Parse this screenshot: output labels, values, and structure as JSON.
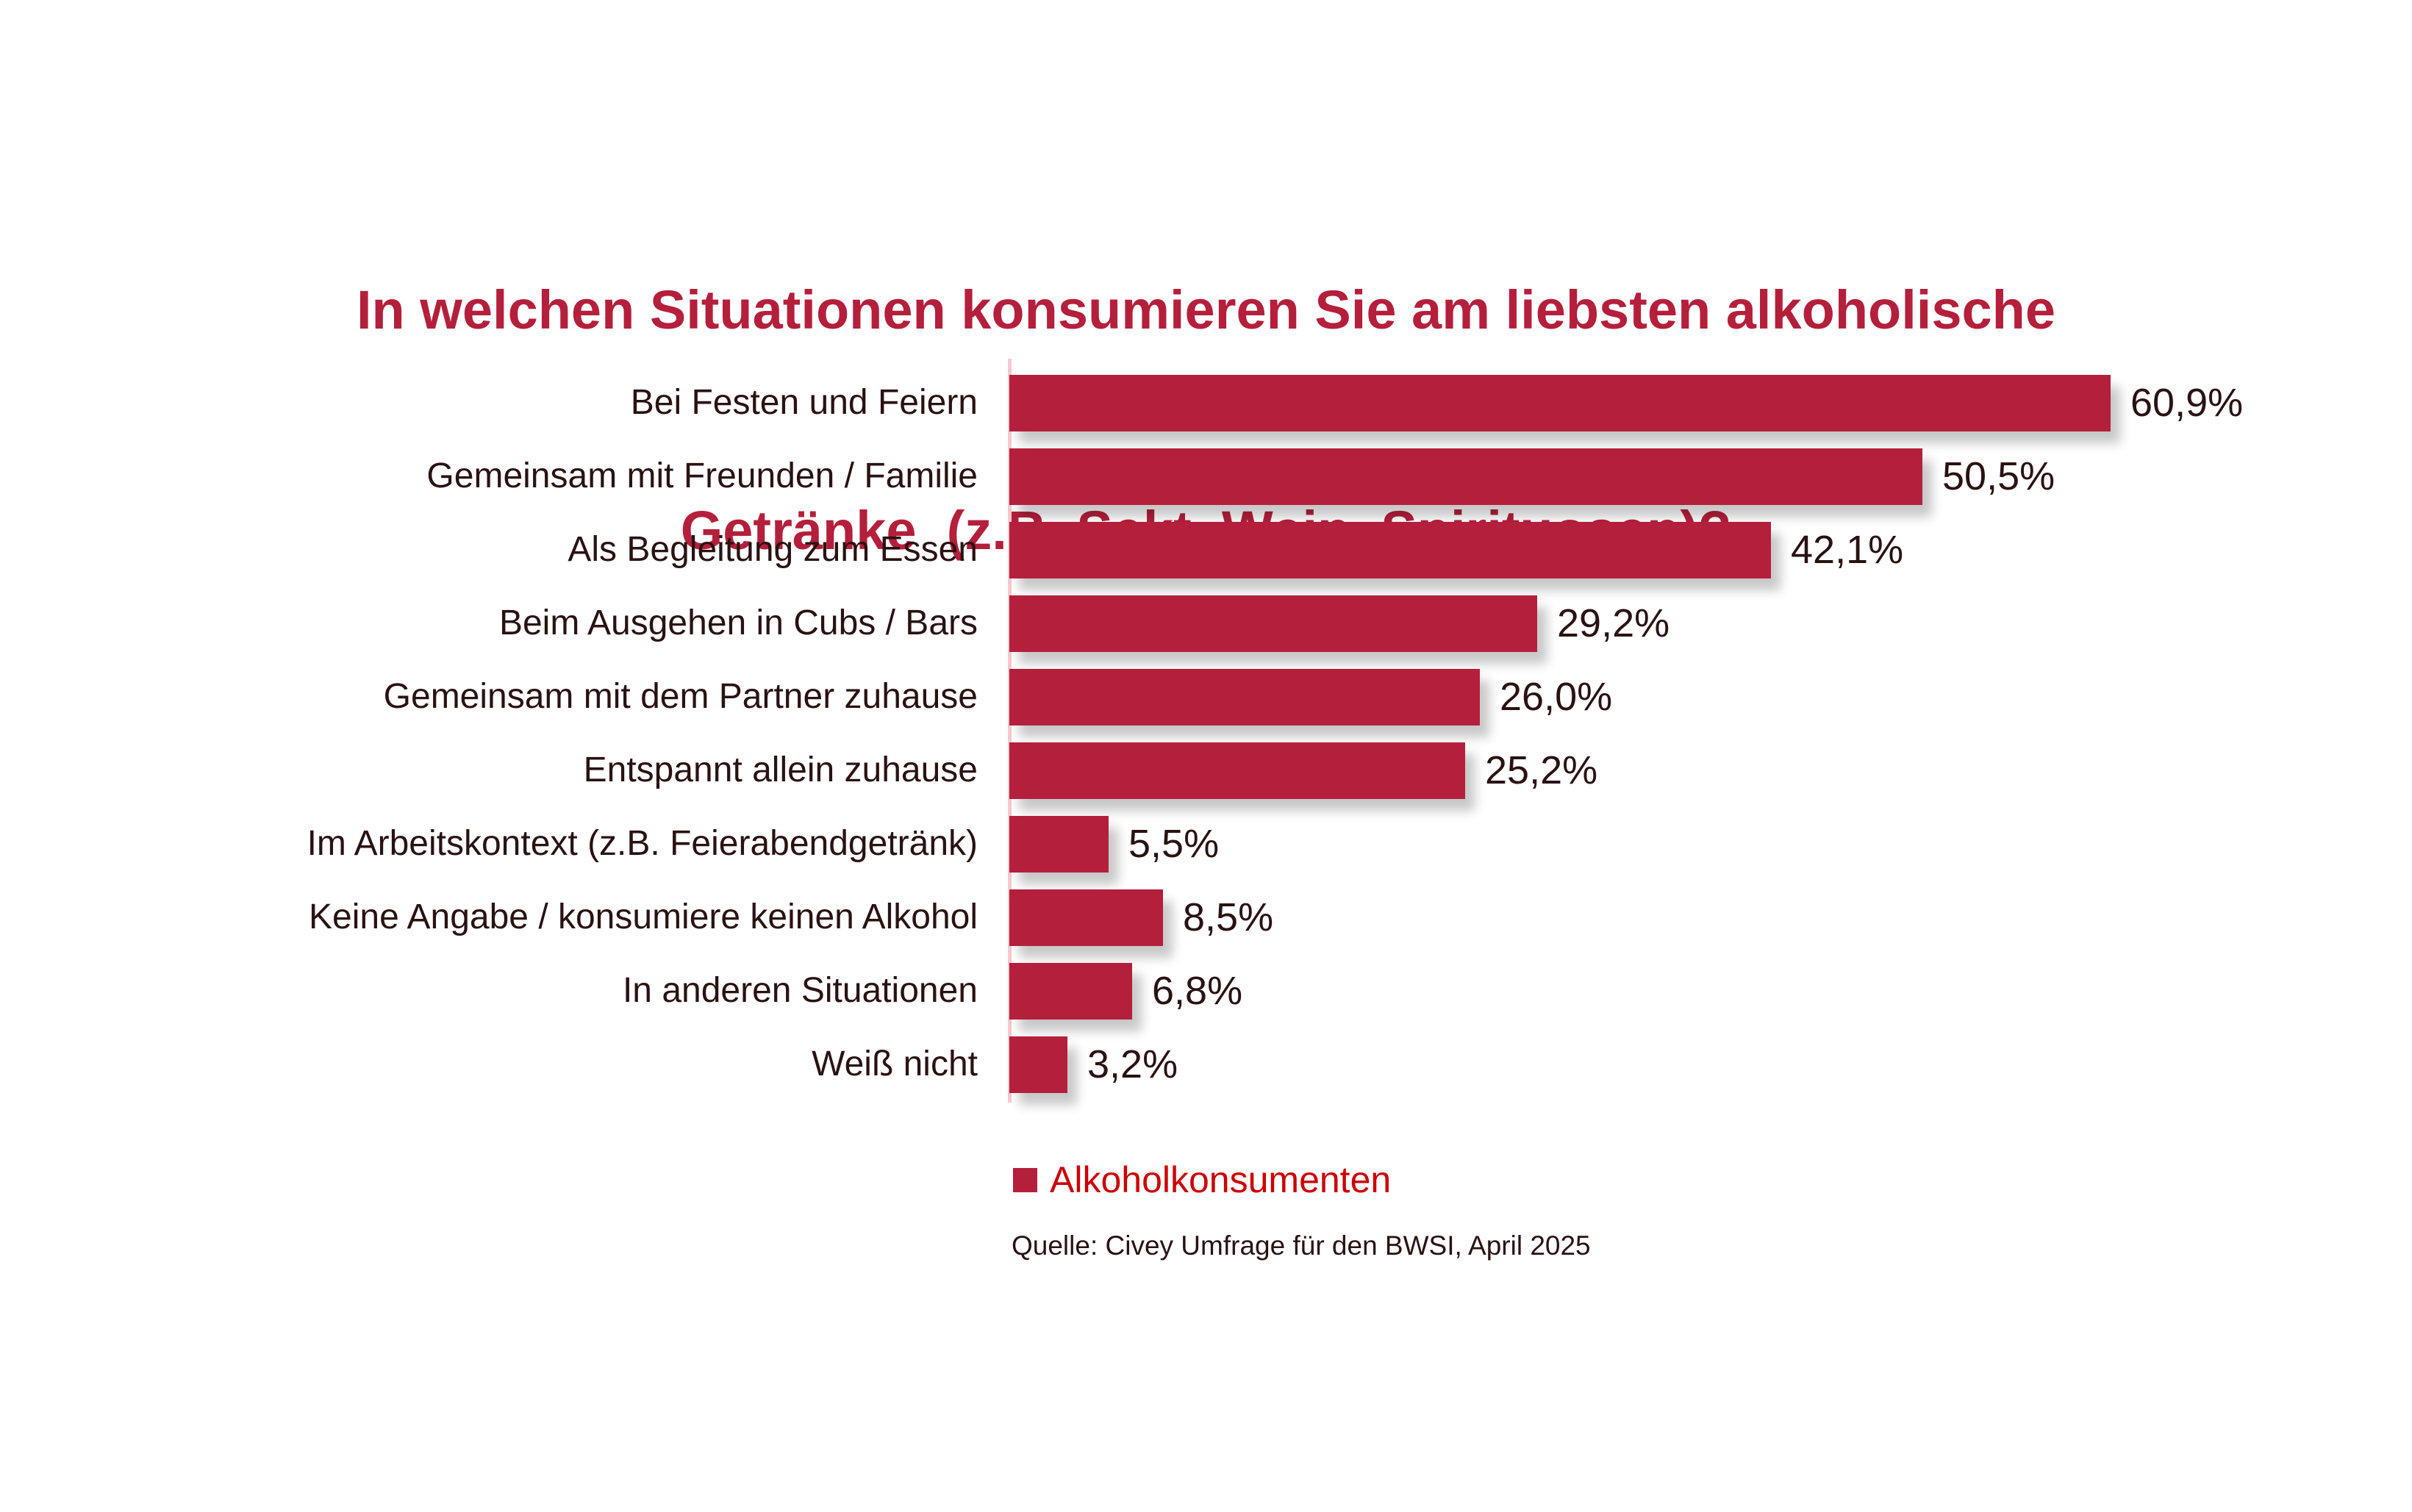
{
  "title": {
    "line1": "In welchen Situationen konsumieren Sie am liebsten alkoholische",
    "line2": "Getränke  (z.B. Sekt, Wein, Spirituosen)?"
  },
  "legend": {
    "label": "Alkoholkonsumenten"
  },
  "source": "Quelle: Civey Umfrage für den BWSI, April 2025",
  "colors": {
    "bar": "#B41F3B",
    "title": "#B41F3B",
    "text_dark": "#2A1212",
    "legend_text": "#CC0000",
    "axis_line": "#F8C9CF",
    "background": "#FFFFFF"
  },
  "chart_data": {
    "type": "bar",
    "orientation": "horizontal",
    "title": "In welchen Situationen konsumieren Sie am liebsten alkoholische Getränke (z.B. Sekt, Wein, Spirituosen)?",
    "series_name": "Alkoholkonsumenten",
    "categories": [
      "Bei Festen und Feiern",
      "Gemeinsam mit Freunden / Familie",
      "Als Begleitung zum Essen",
      "Beim Ausgehen in Cubs / Bars",
      "Gemeinsam mit dem Partner zuhause",
      "Entspannt allein zuhause",
      "Im Arbeitskontext (z.B. Feierabendgetränk)",
      "Keine Angabe / konsumiere keinen Alkohol",
      "In anderen Situationen",
      "Weiß nicht"
    ],
    "values": [
      60.9,
      50.5,
      42.1,
      29.2,
      26.0,
      25.2,
      5.5,
      8.5,
      6.8,
      3.2
    ],
    "value_labels": [
      "60,9%",
      "50,5%",
      "42,1%",
      "29,2%",
      "26,0%",
      "25,2%",
      "5,5%",
      "8,5%",
      "6,8%",
      "3,2%"
    ],
    "xlabel": "",
    "ylabel": "",
    "xlim": [
      0,
      65
    ],
    "grid": false,
    "legend_position": "bottom-left",
    "data_labels": true
  }
}
